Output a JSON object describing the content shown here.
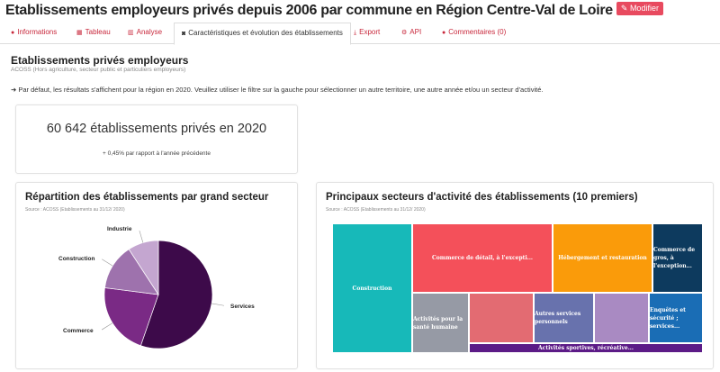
{
  "header": {
    "title": "Etablissements employeurs privés depuis 2006 par commune en Région Centre-Val de Loire",
    "modify_label": "Modifier"
  },
  "tabs": [
    {
      "label": "Informations",
      "icon": "info-circle-icon"
    },
    {
      "label": "Tableau",
      "icon": "table-icon"
    },
    {
      "label": "Analyse",
      "icon": "bar-chart-icon"
    },
    {
      "label": "Caractéristiques et évolution des établissements",
      "icon": "binoculars-icon",
      "active": true
    },
    {
      "label": "Export",
      "icon": "download-icon"
    },
    {
      "label": "API",
      "icon": "cogs-icon"
    },
    {
      "label": "Commentaires (0)",
      "icon": "comments-icon"
    }
  ],
  "section": {
    "title": "Etablissements privés employeurs",
    "subtitle": "ACOSS (Hors agriculture, secteur public et particuliers employeurs)",
    "note": "Par défaut, les résultats s'affichent pour la région en 2020. Veuillez utiliser le filtre sur la gauche pour sélectionner un autre territoire, une autre année et/ou un secteur d'activité."
  },
  "kpi": {
    "value": "60 642 établissements privés en 2020",
    "variation": "+ 0,45% par rapport à l'année précédente"
  },
  "pie": {
    "title": "Répartition des établissements par grand secteur",
    "source": "Source : ACOSS (Etablissements au 31/12/ 2020)"
  },
  "treemap": {
    "title": "Principaux secteurs d'activité des établissements (10 premiers)",
    "source": "Source : ACOSS (Etablissements au 31/12/ 2020)",
    "cells": [
      {
        "label": "Construction",
        "color": "#17b9b9"
      },
      {
        "label": "Commerce de détail, à l'excepti...",
        "color": "#f4505a"
      },
      {
        "label": "Hébergement et restauration",
        "color": "#fa9b0a"
      },
      {
        "label": "Commerce de gros, à l'exception...",
        "color": "#0d3a5e"
      },
      {
        "label": "Activités pour la santé humaine",
        "color": "#969aa5"
      },
      {
        "label": "",
        "color": "#e36b72"
      },
      {
        "label": "Autres services personnels",
        "color": "#6872ad"
      },
      {
        "label": "",
        "color": "#a98ac2"
      },
      {
        "label": "Enquêtes et sécurité ; services...",
        "color": "#1a6db5"
      },
      {
        "label": "Activités sportives, récréative...",
        "color": "#5c1b87"
      }
    ]
  },
  "chart_data": {
    "type": "pie",
    "title": "Répartition des établissements par grand secteur",
    "categories": [
      "Services",
      "Commerce",
      "Construction",
      "Industrie"
    ],
    "values": [
      55.3,
      21.7,
      13.8,
      9.2
    ],
    "colors": [
      "#3d0a4a",
      "#7a2a85",
      "#9e72ad",
      "#c4a6d0"
    ]
  }
}
